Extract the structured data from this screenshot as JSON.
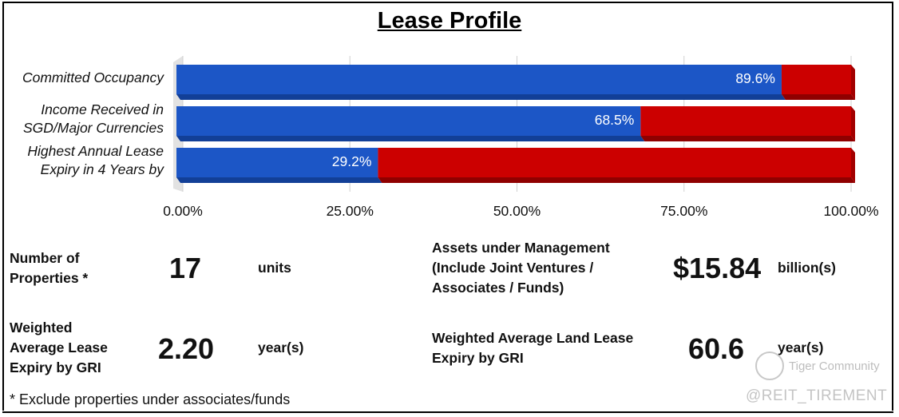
{
  "title": "Lease Profile",
  "chart_data": {
    "type": "bar",
    "orientation": "horizontal",
    "stacked": true,
    "categories": [
      [
        "Committed Occupancy"
      ],
      [
        "Income Received in",
        "SGD/Major Currencies"
      ],
      [
        "Highest Annual Lease",
        "Expiry in 4 Years by"
      ]
    ],
    "values": [
      89.6,
      68.5,
      29.2
    ],
    "value_labels": [
      "89.6%",
      "68.5%",
      "29.2%"
    ],
    "total": 100,
    "xlim": [
      0,
      100
    ],
    "xticks": [
      0,
      25,
      50,
      75,
      100
    ],
    "xtick_labels": [
      "0.00%",
      "25.00%",
      "50.00%",
      "75.00%",
      "100.00%"
    ],
    "colors": {
      "value": "#1c56c6",
      "remainder": "#cc0000"
    },
    "grid": true
  },
  "info": {
    "properties": {
      "label": [
        "Number of",
        "Properties *"
      ],
      "value": "17",
      "unit": "units"
    },
    "wale": {
      "label": [
        "Weighted",
        "Average Lease",
        "Expiry by GRI"
      ],
      "value": "2.20",
      "unit": "year(s)"
    },
    "aum": {
      "label": [
        "Assets under Management",
        "(Include Joint Ventures /",
        "Associates / Funds)"
      ],
      "value": "$15.84",
      "unit": "billion(s)"
    },
    "land_lease": {
      "label": [
        "Weighted Average Land Lease",
        "Expiry by GRI"
      ],
      "value": "60.6",
      "unit": "year(s)"
    }
  },
  "footnote": "* Exclude properties under associates/funds",
  "watermark": {
    "community": "Tiger Community",
    "handle": "@REIT_TIREMENT"
  }
}
